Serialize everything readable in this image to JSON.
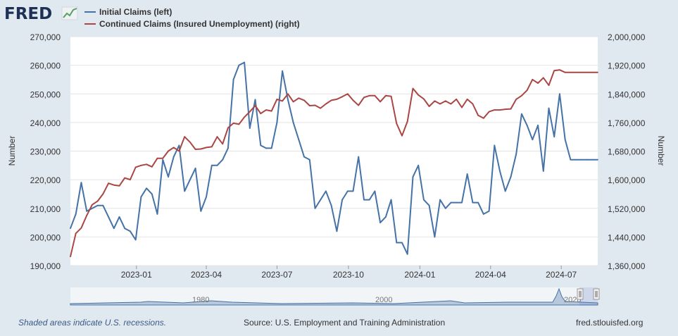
{
  "logo": {
    "text": "FRED"
  },
  "legend": [
    {
      "label": "Initial Claims (left)",
      "color": "#4572a7"
    },
    {
      "label": "Continued Claims (Insured Unemployment) (right)",
      "color": "#aa4643"
    }
  ],
  "footer": {
    "note": "Shaded areas indicate U.S. recessions.",
    "source": "Source: U.S. Employment and Training Administration",
    "site": "fred.stlouisfed.org"
  },
  "chart_data": {
    "type": "line",
    "ylabel_left": "Number",
    "ylabel_right": "Number",
    "ylim_left": [
      190000,
      270000
    ],
    "ylim_right": [
      1360000,
      2000000
    ],
    "y_ticks_left": [
      "190,000",
      "200,000",
      "210,000",
      "220,000",
      "230,000",
      "240,000",
      "250,000",
      "260,000",
      "270,000"
    ],
    "y_ticks_right": [
      "1,360,000",
      "1,440,000",
      "1,520,000",
      "1,600,000",
      "1,680,000",
      "1,760,000",
      "1,840,000",
      "1,920,000",
      "2,000,000"
    ],
    "x_ticks": [
      "2023-01",
      "2023-04",
      "2023-07",
      "2023-10",
      "2024-01",
      "2024-04",
      "2024-07"
    ],
    "x_range": [
      "2022-10-08",
      "2024-08-17"
    ],
    "grid": true,
    "navigator_labels": [
      "1980",
      "2000",
      "2020"
    ],
    "series": [
      {
        "name": "Initial Claims (left)",
        "axis": "left",
        "x": [
          "2022-10-08",
          "2022-10-15",
          "2022-10-22",
          "2022-10-29",
          "2022-11-05",
          "2022-11-12",
          "2022-11-19",
          "2022-11-26",
          "2022-12-03",
          "2022-12-10",
          "2022-12-17",
          "2022-12-24",
          "2022-12-31",
          "2023-01-07",
          "2023-01-14",
          "2023-01-21",
          "2023-01-28",
          "2023-02-04",
          "2023-02-11",
          "2023-02-18",
          "2023-02-25",
          "2023-03-04",
          "2023-03-11",
          "2023-03-18",
          "2023-03-25",
          "2023-04-01",
          "2023-04-08",
          "2023-04-15",
          "2023-04-22",
          "2023-04-29",
          "2023-05-06",
          "2023-05-13",
          "2023-05-20",
          "2023-05-27",
          "2023-06-03",
          "2023-06-10",
          "2023-06-17",
          "2023-06-24",
          "2023-07-01",
          "2023-07-08",
          "2023-07-15",
          "2023-07-22",
          "2023-07-29",
          "2023-08-05",
          "2023-08-12",
          "2023-08-19",
          "2023-08-26",
          "2023-09-02",
          "2023-09-09",
          "2023-09-16",
          "2023-09-23",
          "2023-09-30",
          "2023-10-07",
          "2023-10-14",
          "2023-10-21",
          "2023-10-28",
          "2023-11-04",
          "2023-11-11",
          "2023-11-18",
          "2023-11-25",
          "2023-12-02",
          "2023-12-09",
          "2023-12-16",
          "2023-12-23",
          "2023-12-30",
          "2024-01-06",
          "2024-01-13",
          "2024-01-20",
          "2024-01-27",
          "2024-02-03",
          "2024-02-10",
          "2024-02-17",
          "2024-02-24",
          "2024-03-02",
          "2024-03-09",
          "2024-03-16",
          "2024-03-23",
          "2024-03-30",
          "2024-04-06",
          "2024-04-13",
          "2024-04-20",
          "2024-04-27",
          "2024-05-04",
          "2024-05-11",
          "2024-05-18",
          "2024-05-25",
          "2024-06-01",
          "2024-06-08",
          "2024-06-15",
          "2024-06-22",
          "2024-06-29",
          "2024-07-06",
          "2024-07-13",
          "2024-07-20",
          "2024-07-27",
          "2024-08-03",
          "2024-08-10",
          "2024-08-17"
        ],
        "values": [
          203000,
          208000,
          219000,
          209000,
          210000,
          211000,
          211000,
          207000,
          203000,
          207000,
          203000,
          202000,
          199000,
          214000,
          217000,
          215000,
          208000,
          227000,
          221000,
          228000,
          232000,
          216000,
          220000,
          224000,
          209000,
          214000,
          225000,
          225000,
          227000,
          231000,
          255000,
          260000,
          261000,
          238000,
          248000,
          232000,
          231000,
          231000,
          240000,
          258000,
          248000,
          240000,
          234000,
          228000,
          227000,
          210000,
          213000,
          216000,
          211000,
          202000,
          213000,
          216000,
          216000,
          228000,
          213000,
          213000,
          216000,
          205000,
          207000,
          213000,
          198000,
          198000,
          194000,
          221000,
          225000,
          213000,
          211000,
          200000,
          213000,
          210000,
          212000,
          212000,
          212000,
          222000,
          212000,
          212000,
          208000,
          209000,
          232000,
          223000,
          216000,
          221000,
          229000,
          243000,
          239000,
          234000,
          239000,
          223000,
          245000,
          235000,
          250000,
          234000,
          227000,
          227000,
          227000,
          227000,
          227000,
          227000
        ]
      },
      {
        "name": "Continued Claims (Insured Unemployment) (right)",
        "axis": "right",
        "x": [
          "2022-10-08",
          "2022-10-15",
          "2022-10-22",
          "2022-10-29",
          "2022-11-05",
          "2022-11-12",
          "2022-11-19",
          "2022-11-26",
          "2022-12-03",
          "2022-12-10",
          "2022-12-17",
          "2022-12-24",
          "2022-12-31",
          "2023-01-07",
          "2023-01-14",
          "2023-01-21",
          "2023-01-28",
          "2023-02-04",
          "2023-02-11",
          "2023-02-18",
          "2023-02-25",
          "2023-03-04",
          "2023-03-11",
          "2023-03-18",
          "2023-03-25",
          "2023-04-01",
          "2023-04-08",
          "2023-04-15",
          "2023-04-22",
          "2023-04-29",
          "2023-05-06",
          "2023-05-13",
          "2023-05-20",
          "2023-05-27",
          "2023-06-03",
          "2023-06-10",
          "2023-06-17",
          "2023-06-24",
          "2023-07-01",
          "2023-07-08",
          "2023-07-15",
          "2023-07-22",
          "2023-07-29",
          "2023-08-05",
          "2023-08-12",
          "2023-08-19",
          "2023-08-26",
          "2023-09-02",
          "2023-09-09",
          "2023-09-16",
          "2023-09-23",
          "2023-09-30",
          "2023-10-07",
          "2023-10-14",
          "2023-10-21",
          "2023-10-28",
          "2023-11-04",
          "2023-11-11",
          "2023-11-18",
          "2023-11-25",
          "2023-12-02",
          "2023-12-09",
          "2023-12-16",
          "2023-12-23",
          "2023-12-30",
          "2024-01-06",
          "2024-01-13",
          "2024-01-20",
          "2024-01-27",
          "2024-02-03",
          "2024-02-10",
          "2024-02-17",
          "2024-02-24",
          "2024-03-02",
          "2024-03-09",
          "2024-03-16",
          "2024-03-23",
          "2024-03-30",
          "2024-04-06",
          "2024-04-13",
          "2024-04-20",
          "2024-04-27",
          "2024-05-04",
          "2024-05-11",
          "2024-05-18",
          "2024-05-25",
          "2024-06-01",
          "2024-06-08",
          "2024-06-15",
          "2024-06-22",
          "2024-06-29",
          "2024-07-06",
          "2024-07-13",
          "2024-07-20",
          "2024-07-27",
          "2024-08-03",
          "2024-08-10",
          "2024-08-17"
        ],
        "values": [
          1385000,
          1450000,
          1465000,
          1500000,
          1530000,
          1540000,
          1560000,
          1590000,
          1585000,
          1583000,
          1605000,
          1600000,
          1635000,
          1640000,
          1643000,
          1636000,
          1660000,
          1660000,
          1680000,
          1690000,
          1680000,
          1720000,
          1705000,
          1685000,
          1686000,
          1690000,
          1692000,
          1720000,
          1700000,
          1745000,
          1758000,
          1755000,
          1775000,
          1790000,
          1807000,
          1785000,
          1795000,
          1792000,
          1825000,
          1820000,
          1840000,
          1818000,
          1828000,
          1822000,
          1807000,
          1808000,
          1800000,
          1812000,
          1822000,
          1825000,
          1832000,
          1840000,
          1822000,
          1808000,
          1830000,
          1835000,
          1835000,
          1818000,
          1835000,
          1833000,
          1757000,
          1723000,
          1763000,
          1855000,
          1837000,
          1826000,
          1805000,
          1820000,
          1812000,
          1820000,
          1812000,
          1825000,
          1802000,
          1825000,
          1812000,
          1780000,
          1772000,
          1790000,
          1795000,
          1795000,
          1797000,
          1798000,
          1825000,
          1835000,
          1850000,
          1880000,
          1870000,
          1885000,
          1864000,
          1905000,
          1907000,
          1900000,
          1900000,
          1900000,
          1900000,
          1900000,
          1900000,
          1900000
        ]
      }
    ]
  }
}
